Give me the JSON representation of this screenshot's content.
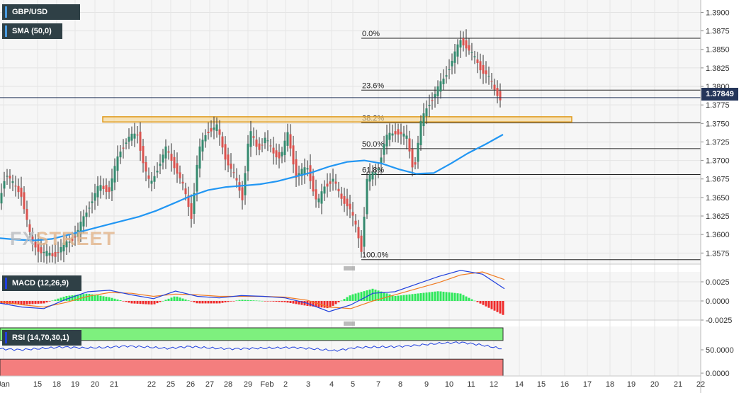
{
  "instrument": "GBP/USD",
  "indicators": {
    "sma": {
      "label": "SMA (50,0)",
      "color": "#2196f3"
    },
    "macd": {
      "label": "MACD (12,26,9)",
      "macd_color": "#1f3fdd",
      "signal_color": "#f07b22"
    },
    "rsi": {
      "label": "RSI (14,70,30,1)",
      "line_color": "#1f3fdd"
    }
  },
  "watermark": {
    "part1": "FX",
    "part2": "STREET"
  },
  "last_price": "1.37849",
  "fib_levels": [
    {
      "label": "0.0%",
      "price": 1.3865
    },
    {
      "label": "23.6%",
      "price": 1.3795
    },
    {
      "label": "38.2%",
      "price": 1.3751
    },
    {
      "label": "50.0%",
      "price": 1.3716
    },
    {
      "label": "61.8%",
      "price": 1.3681
    },
    {
      "label": "100.0%",
      "price": 1.3566
    }
  ],
  "resistance_zone": {
    "low": 1.3752,
    "high": 1.3759
  },
  "price_axis_labels": [
    "1.3900",
    "1.3875",
    "1.3850",
    "1.3825",
    "1.3800",
    "1.3775",
    "1.3750",
    "1.3725",
    "1.3700",
    "1.3675",
    "1.3650",
    "1.3625",
    "1.3600",
    "1.3575"
  ],
  "macd_axis_labels": [
    "0.0025",
    "0.0000",
    "-0.0025"
  ],
  "rsi_axis_labels": [
    "50.0000",
    "0.0000"
  ],
  "date_labels": [
    "Jan",
    "15",
    "18",
    "19",
    "20",
    "21",
    "22",
    "25",
    "26",
    "27",
    "28",
    "29",
    "Feb",
    "2",
    "3",
    "4",
    "5",
    "7",
    "8",
    "9",
    "10",
    "11",
    "12",
    "14",
    "15",
    "16",
    "17",
    "18",
    "19",
    "20",
    "21",
    "22"
  ],
  "chart_data": {
    "type": "candlestick",
    "price_axis": {
      "ymin": 1.356,
      "ymax": 1.391
    },
    "sma_50": [
      1.3595,
      1.3593,
      1.3592,
      1.3594,
      1.36,
      1.3606,
      1.3612,
      1.3618,
      1.3624,
      1.3632,
      1.3642,
      1.3652,
      1.366,
      1.3664,
      1.3666,
      1.3668,
      1.3672,
      1.3678,
      1.3684,
      1.3692,
      1.3698,
      1.37,
      1.3696,
      1.3688,
      1.3682,
      1.3683,
      1.3696,
      1.371,
      1.3722,
      1.3735
    ],
    "macd": [
      -0.0003,
      -0.0008,
      -0.001,
      0.0002,
      0.0012,
      0.0014,
      0.0008,
      0.0003,
      0.0013,
      0.0006,
      0.0004,
      0.0007,
      0.0006,
      0.0004,
      -0.0003,
      -0.0014,
      -0.0005,
      0.001,
      0.0012,
      0.0022,
      0.0032,
      0.004,
      0.0035,
      0.0016
    ],
    "macd_signal": [
      -0.0001,
      -0.0005,
      -0.0008,
      -0.0002,
      0.0006,
      0.0011,
      0.001,
      0.0006,
      0.0009,
      0.0008,
      0.0006,
      0.0006,
      0.0006,
      0.0005,
      0.0001,
      -0.0008,
      -0.001,
      0.0,
      0.0008,
      0.0016,
      0.0024,
      0.0034,
      0.0038,
      0.0028
    ],
    "rsi": [
      52,
      50,
      53,
      56,
      54,
      55,
      58,
      56,
      53,
      57,
      54,
      52,
      53,
      54,
      55,
      52,
      48,
      55,
      56,
      57,
      60,
      64,
      66,
      60,
      52
    ]
  }
}
